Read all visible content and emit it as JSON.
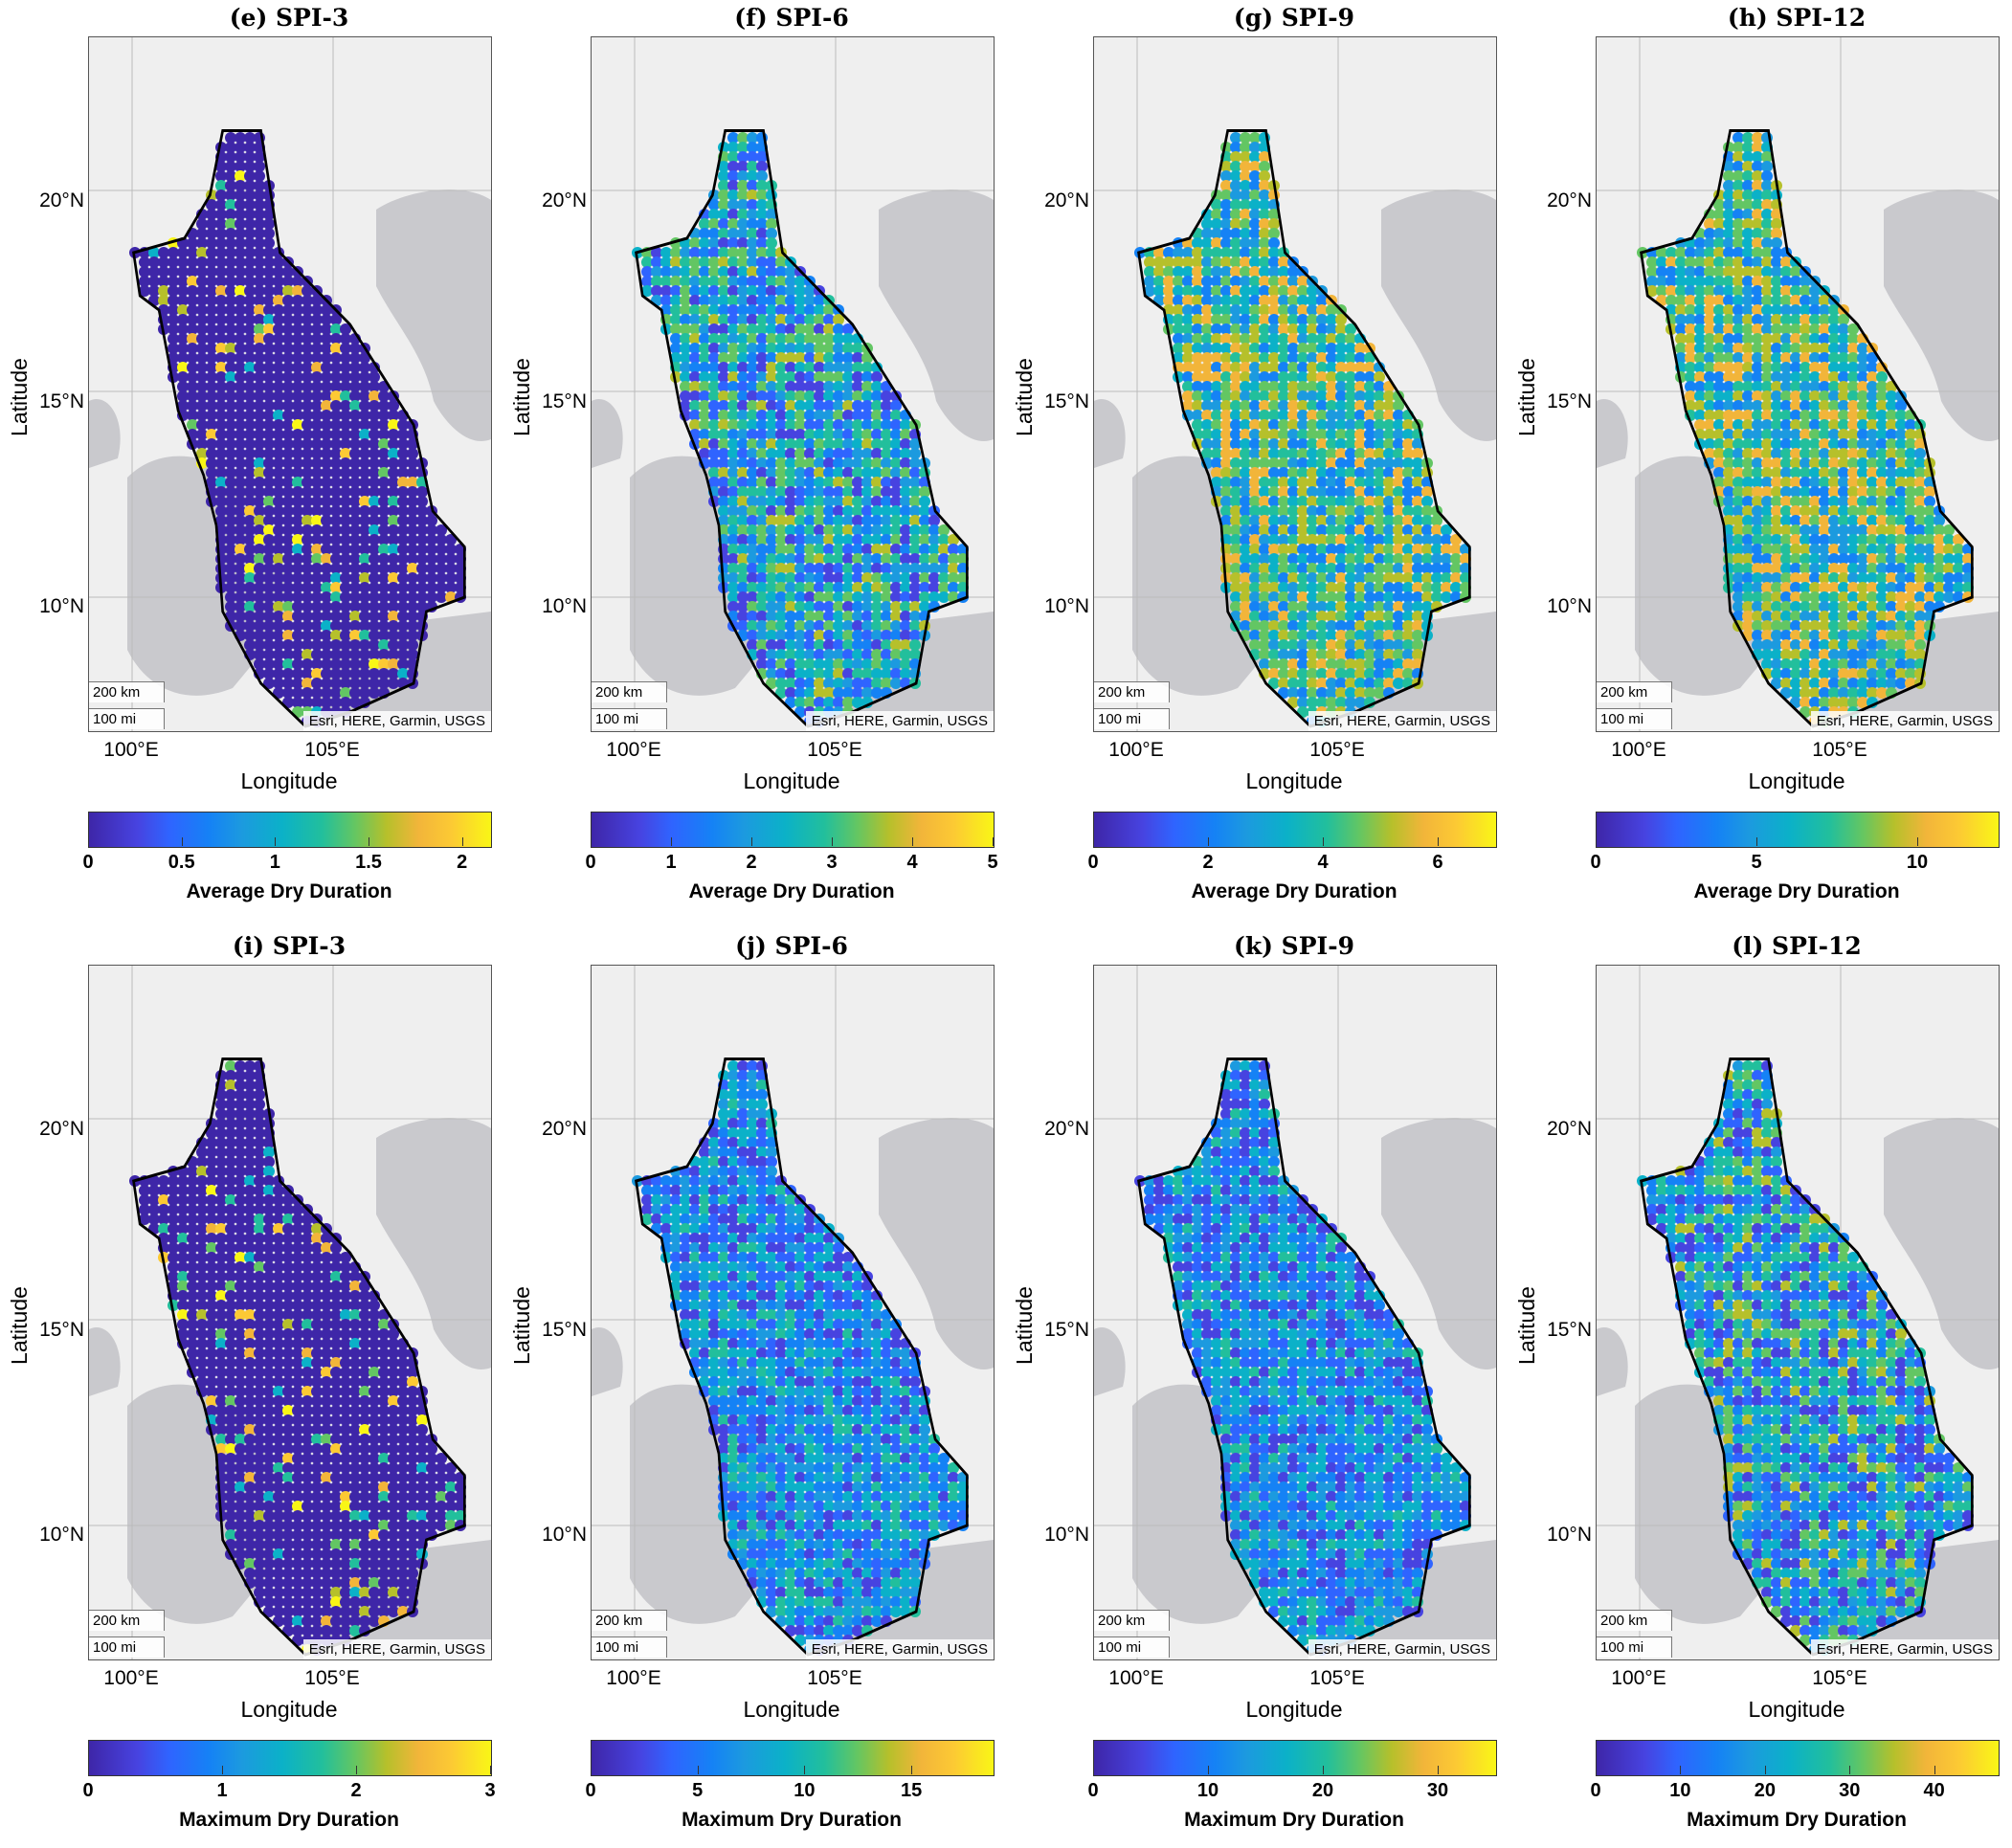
{
  "rows": [
    {
      "panels": [
        {
          "title": "(e) SPI-3",
          "colorbar": {
            "ticks": [
              "0",
              "0.5",
              "1",
              "1.5",
              "2"
            ],
            "max": 2.15,
            "label": "Average Dry Duration"
          },
          "variant": "low"
        },
        {
          "title": "(f) SPI-6",
          "colorbar": {
            "ticks": [
              "0",
              "1",
              "2",
              "3",
              "4",
              "5"
            ],
            "max": 5.0,
            "label": "Average Dry Duration"
          },
          "variant": "mid"
        },
        {
          "title": "(g) SPI-9",
          "colorbar": {
            "ticks": [
              "0",
              "2",
              "4",
              "6"
            ],
            "max": 7.0,
            "label": "Average Dry Duration"
          },
          "variant": "high"
        },
        {
          "title": "(h) SPI-12",
          "colorbar": {
            "ticks": [
              "0",
              "5",
              "10"
            ],
            "max": 12.5,
            "label": "Average Dry Duration"
          },
          "variant": "high"
        }
      ]
    },
    {
      "panels": [
        {
          "title": "(i) SPI-3",
          "colorbar": {
            "ticks": [
              "0",
              "1",
              "2",
              "3"
            ],
            "max": 3.0,
            "label": "Maximum Dry Duration"
          },
          "variant": "low"
        },
        {
          "title": "(j) SPI-6",
          "colorbar": {
            "ticks": [
              "0",
              "5",
              "10",
              "15"
            ],
            "max": 18.8,
            "label": "Maximum Dry Duration"
          },
          "variant": "blue"
        },
        {
          "title": "(k) SPI-9",
          "colorbar": {
            "ticks": [
              "0",
              "10",
              "20",
              "30"
            ],
            "max": 35.0,
            "label": "Maximum Dry Duration"
          },
          "variant": "blue"
        },
        {
          "title": "(l) SPI-12",
          "colorbar": {
            "ticks": [
              "0",
              "10",
              "20",
              "30",
              "40"
            ],
            "max": 47.5,
            "label": "Maximum Dry Duration"
          },
          "variant": "mid"
        }
      ]
    }
  ],
  "axes": {
    "ylabel": "Latitude",
    "xlabel": "Longitude",
    "yticks": [
      "20°N",
      "15°N",
      "10°N"
    ],
    "xticks": [
      "100°E",
      "105°E"
    ]
  },
  "map": {
    "scale_km": "200 km",
    "scale_mi": "100 mi",
    "attribution": "Esri, HERE, Garmin, USGS"
  },
  "colors": {
    "ramp": [
      "#3e26a8",
      "#4743e0",
      "#2f64ff",
      "#1582f5",
      "#1c9adf",
      "#0bb1c8",
      "#22bf9c",
      "#63c663",
      "#b6c02b",
      "#f2b53a",
      "#fcc934",
      "#f9f616"
    ],
    "land": "#efefef",
    "sea": "#c9c9cd"
  }
}
